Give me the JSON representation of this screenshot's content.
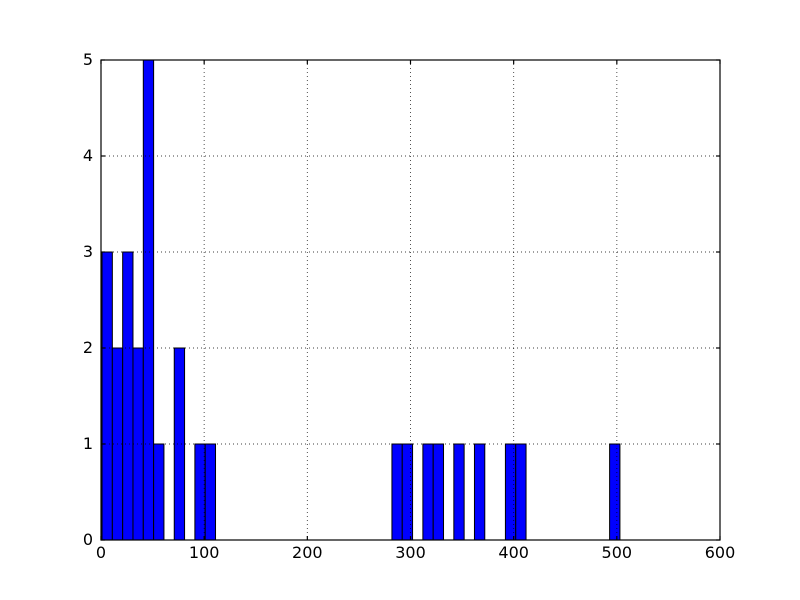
{
  "window": {
    "background": "#ffffff"
  },
  "chart_data": {
    "type": "bar",
    "subtype": "histogram",
    "title": "",
    "xlabel": "",
    "ylabel": "",
    "xlim": [
      0,
      600
    ],
    "ylim": [
      0,
      5
    ],
    "xticks": [
      0,
      100,
      200,
      300,
      400,
      500,
      600
    ],
    "yticks": [
      0,
      1,
      2,
      3,
      4,
      5
    ],
    "grid": {
      "visible": true,
      "style": "dotted",
      "color": "#000000",
      "above_data": true
    },
    "legend": "none",
    "colors": {
      "bar_fill": "#0000ff",
      "bar_edge": "#000000",
      "axis": "#000000",
      "text": "#000000"
    },
    "total_count": 29,
    "bins": [
      {
        "start": 1,
        "end": 11,
        "count": 3
      },
      {
        "start": 11,
        "end": 21,
        "count": 2
      },
      {
        "start": 21,
        "end": 31,
        "count": 3
      },
      {
        "start": 31,
        "end": 41,
        "count": 2
      },
      {
        "start": 41,
        "end": 51,
        "count": 5
      },
      {
        "start": 51,
        "end": 61,
        "count": 1
      },
      {
        "start": 61,
        "end": 71,
        "count": 0
      },
      {
        "start": 71,
        "end": 81,
        "count": 2
      },
      {
        "start": 81,
        "end": 91,
        "count": 0
      },
      {
        "start": 91,
        "end": 101,
        "count": 1
      },
      {
        "start": 101,
        "end": 111,
        "count": 1
      },
      {
        "start": 282,
        "end": 292,
        "count": 1
      },
      {
        "start": 292,
        "end": 302,
        "count": 1
      },
      {
        "start": 312,
        "end": 322,
        "count": 1
      },
      {
        "start": 322,
        "end": 332,
        "count": 1
      },
      {
        "start": 342,
        "end": 352,
        "count": 1
      },
      {
        "start": 362,
        "end": 372,
        "count": 1
      },
      {
        "start": 392,
        "end": 402,
        "count": 1
      },
      {
        "start": 402,
        "end": 412,
        "count": 1
      },
      {
        "start": 493,
        "end": 503,
        "count": 1
      }
    ]
  }
}
